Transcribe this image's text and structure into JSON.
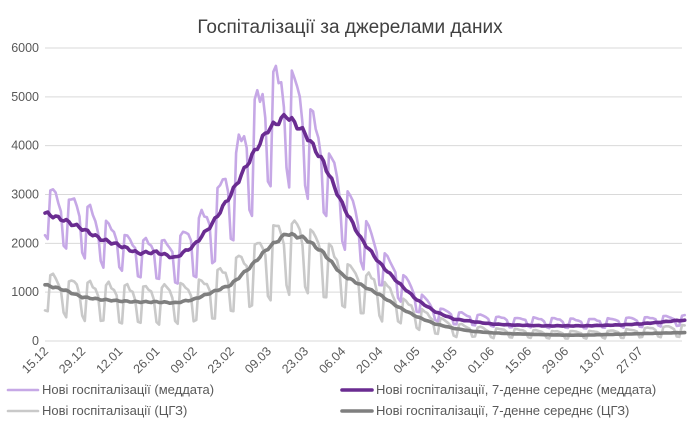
{
  "chart_data": {
    "type": "line",
    "title": "Госпіталізації за джерелами даних",
    "xlabel": "",
    "ylabel": "",
    "ylim": [
      0,
      6000
    ],
    "yticks": [
      0,
      1000,
      2000,
      3000,
      4000,
      5000,
      6000
    ],
    "x_start": "15.12",
    "x_tick_step_days": 14,
    "x_tick_labels": [
      "15.12",
      "29.12",
      "12.01",
      "26.01",
      "09.02",
      "23.02",
      "09.03",
      "23.03",
      "06.04",
      "20.04",
      "04.05",
      "18.05",
      "01.06",
      "15.06",
      "29.06",
      "13.07",
      "27.07"
    ],
    "grid": "horizontal",
    "legend_position": "bottom",
    "series": [
      {
        "name": "Нові госпіталізації (меддата)",
        "color": "#c6a8e6",
        "line_width": 2.6,
        "x": [
          0,
          7,
          14,
          21,
          28,
          35,
          42,
          49,
          56,
          63,
          70,
          77,
          84,
          91,
          98,
          105,
          112,
          119,
          126,
          133,
          140,
          147,
          154,
          161,
          168,
          175,
          182,
          189,
          196,
          203,
          210,
          217,
          224,
          231,
          238
        ],
        "weekly_peak": [
          3250,
          2950,
          2950,
          2500,
          2300,
          2050,
          2100,
          2050,
          2400,
          2900,
          3700,
          4700,
          5500,
          5600,
          5100,
          4200,
          3300,
          2600,
          2000,
          1500,
          1050,
          700,
          600,
          550,
          520,
          480,
          480,
          470,
          460,
          450,
          460,
          470,
          480,
          500,
          520
        ],
        "weekly_trough": [
          2050,
          1900,
          1750,
          1550,
          1450,
          1300,
          1250,
          1200,
          1250,
          1550,
          2000,
          2600,
          3100,
          3300,
          3100,
          2600,
          2000,
          1550,
          1150,
          850,
          600,
          400,
          330,
          320,
          290,
          280,
          280,
          270,
          270,
          260,
          270,
          280,
          290,
          300,
          310
        ],
        "weekly_mean": [
          2620,
          2480,
          2300,
          2090,
          1960,
          1800,
          1820,
          1700,
          1950,
          2400,
          3000,
          3700,
          4330,
          4620,
          4250,
          3650,
          2800,
          2100,
          1600,
          1200,
          850,
          600,
          450,
          400,
          350,
          330,
          320,
          310,
          310,
          310,
          320,
          330,
          350,
          380,
          420
        ]
      },
      {
        "name": "Нові госпіталізації, 7-денне середнє (меддата)",
        "color": "#6a2c91",
        "line_width": 3.6,
        "x": [
          0,
          7,
          14,
          21,
          28,
          35,
          42,
          49,
          56,
          63,
          70,
          77,
          84,
          91,
          98,
          105,
          112,
          119,
          126,
          133,
          140,
          147,
          154,
          161,
          168,
          175,
          182,
          189,
          196,
          203,
          210,
          217,
          224,
          231,
          238
        ],
        "values": [
          2620,
          2480,
          2300,
          2090,
          1960,
          1800,
          1820,
          1700,
          1950,
          2400,
          3000,
          3700,
          4330,
          4620,
          4250,
          3650,
          2800,
          2100,
          1600,
          1200,
          850,
          600,
          450,
          400,
          350,
          330,
          320,
          310,
          310,
          310,
          320,
          330,
          350,
          380,
          420
        ]
      },
      {
        "name": "Нові госпіталізації (ЦГЗ)",
        "color": "#c9c9c9",
        "line_width": 2.6,
        "x": [
          0,
          7,
          14,
          21,
          28,
          35,
          42,
          49,
          56,
          63,
          70,
          77,
          84,
          91,
          98,
          105,
          112,
          119,
          126,
          133,
          140,
          147,
          154,
          161,
          168,
          175,
          182,
          189,
          196,
          203,
          210,
          217,
          224,
          231,
          238
        ],
        "weekly_peak": [
          1400,
          1300,
          1200,
          1200,
          1150,
          1100,
          1100,
          1150,
          1200,
          1350,
          1600,
          1900,
          2300,
          2500,
          2400,
          2100,
          1700,
          1450,
          1300,
          950,
          700,
          500,
          380,
          300,
          260,
          250,
          230,
          210,
          200,
          200,
          210,
          230,
          260,
          290,
          320
        ],
        "weekly_trough": [
          600,
          500,
          450,
          400,
          380,
          350,
          350,
          350,
          380,
          450,
          550,
          700,
          900,
          1000,
          1000,
          850,
          700,
          550,
          450,
          350,
          250,
          150,
          100,
          80,
          70,
          60,
          60,
          50,
          50,
          50,
          60,
          60,
          70,
          80,
          90
        ],
        "weekly_mean": [
          1150,
          1050,
          900,
          850,
          820,
          800,
          800,
          780,
          850,
          1000,
          1150,
          1500,
          1900,
          2200,
          2100,
          1800,
          1350,
          1150,
          950,
          700,
          500,
          350,
          260,
          200,
          170,
          150,
          140,
          130,
          120,
          120,
          130,
          140,
          150,
          160,
          170
        ]
      },
      {
        "name": "Нові госпіталізації, 7-денне середнє (ЦГЗ)",
        "color": "#7f7f7f",
        "line_width": 3.6,
        "x": [
          0,
          7,
          14,
          21,
          28,
          35,
          42,
          49,
          56,
          63,
          70,
          77,
          84,
          91,
          98,
          105,
          112,
          119,
          126,
          133,
          140,
          147,
          154,
          161,
          168,
          175,
          182,
          189,
          196,
          203,
          210,
          217,
          224,
          231,
          238
        ],
        "values": [
          1150,
          1050,
          900,
          850,
          820,
          800,
          800,
          780,
          850,
          1000,
          1150,
          1500,
          1900,
          2200,
          2100,
          1800,
          1350,
          1150,
          950,
          700,
          500,
          350,
          260,
          200,
          170,
          150,
          140,
          130,
          120,
          120,
          130,
          140,
          150,
          160,
          170
        ]
      }
    ]
  }
}
